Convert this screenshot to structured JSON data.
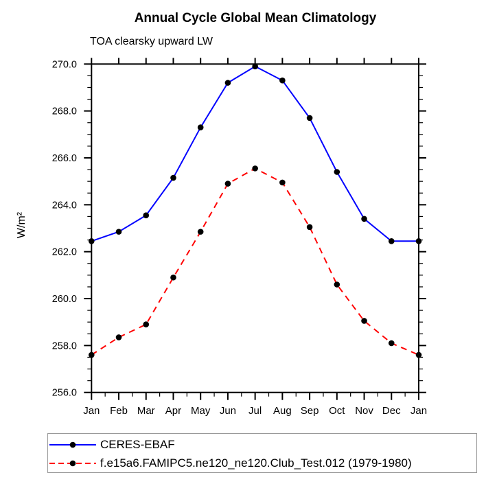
{
  "chart_data": {
    "type": "line",
    "title": "Annual Cycle Global Mean Climatology",
    "subtitle": "TOA clearsky upward LW",
    "ylabel": "W/m²",
    "xlabel": "",
    "categories": [
      "Jan",
      "Feb",
      "Mar",
      "Apr",
      "May",
      "Jun",
      "Jul",
      "Aug",
      "Sep",
      "Oct",
      "Nov",
      "Dec",
      "Jan"
    ],
    "ylim": [
      256.0,
      270.0
    ],
    "ytick_step": 2.0,
    "ytick_minor_step": 0.5,
    "ytick_labels": [
      "256.0",
      "258.0",
      "260.0",
      "262.0",
      "264.0",
      "266.0",
      "268.0",
      "270.0"
    ],
    "grid": false,
    "legend_position": "bottom-left",
    "marker_color": "#000000",
    "series": [
      {
        "name": "CERES-EBAF",
        "color": "#0000ff",
        "line_style": "solid",
        "values": [
          262.45,
          262.85,
          263.55,
          265.15,
          267.3,
          269.2,
          269.9,
          269.3,
          267.7,
          265.4,
          263.4,
          262.45,
          262.45
        ]
      },
      {
        "name": "f.e15a6.FAMIPC5.ne120_ne120.Club_Test.012 (1979-1980)",
        "color": "#ff0000",
        "line_style": "dashed",
        "values": [
          257.6,
          258.35,
          258.9,
          260.9,
          262.85,
          264.9,
          265.55,
          264.95,
          263.05,
          260.6,
          259.05,
          258.1,
          257.6
        ]
      }
    ]
  }
}
